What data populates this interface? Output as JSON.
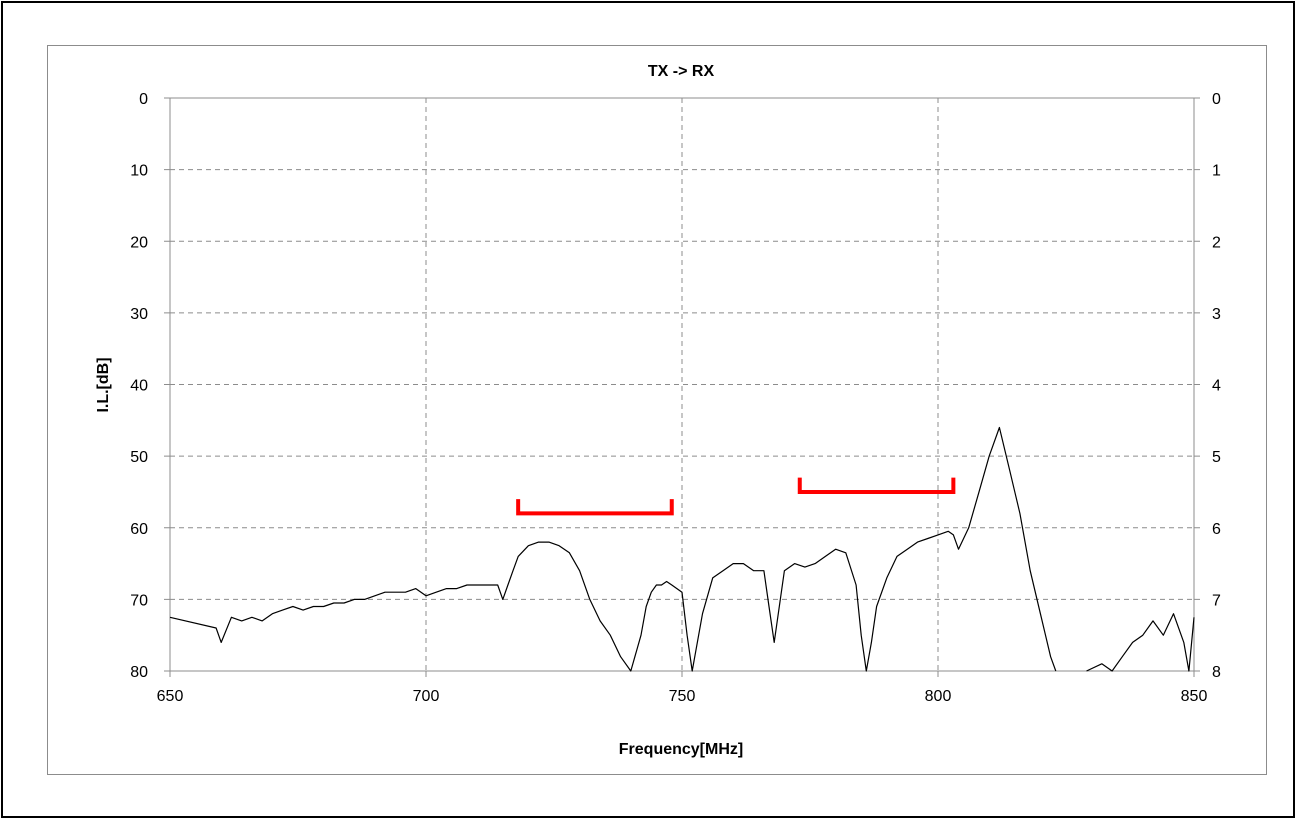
{
  "chart_data": {
    "type": "line",
    "title": "TX -> RX",
    "xlabel": "Frequency[MHz]",
    "ylabel": "I.L.[dB]",
    "xlim": [
      650,
      850
    ],
    "ylim_left": [
      0,
      80
    ],
    "ylim_right": [
      0,
      8
    ],
    "y_inverted": true,
    "grid": true,
    "x_ticks": [
      "650",
      "700",
      "750",
      "800",
      "850"
    ],
    "y_ticks_left": [
      "0",
      "10",
      "20",
      "30",
      "40",
      "50",
      "60",
      "70",
      "80"
    ],
    "y_ticks_right": [
      "0",
      "1",
      "2",
      "3",
      "4",
      "5",
      "6",
      "7",
      "8"
    ],
    "line_color": "#000000",
    "marker_color": "#ff0000",
    "series": [
      {
        "x": [
          650,
          659,
          660,
          662,
          664,
          666,
          668,
          670,
          672,
          674,
          676,
          678,
          680,
          682,
          684,
          686,
          688,
          690,
          692,
          694,
          696,
          698,
          700,
          702,
          704,
          706,
          708,
          710,
          712,
          714,
          715,
          716,
          717,
          718,
          720,
          722,
          724,
          726,
          728,
          730,
          732,
          734,
          736,
          738,
          740,
          742,
          743,
          744,
          745,
          746,
          747,
          748,
          750,
          751,
          752,
          754,
          756,
          758,
          760,
          762,
          764,
          766,
          767,
          768,
          770,
          772,
          774,
          776,
          778,
          780,
          782,
          784,
          785,
          786,
          787,
          788,
          790,
          792,
          794,
          796,
          798,
          800,
          802,
          803,
          804,
          806,
          808,
          810,
          812,
          814,
          816,
          818,
          820,
          822,
          823
        ],
        "y": [
          72.5,
          74,
          76,
          72.5,
          73,
          72.5,
          73,
          72,
          71.5,
          71,
          71.5,
          71,
          71,
          70.5,
          70.5,
          70,
          70,
          69.5,
          69,
          69,
          69,
          68.5,
          69.5,
          69,
          68.5,
          68.5,
          68,
          68,
          68,
          68,
          70,
          68,
          66,
          64,
          62.5,
          62,
          62,
          62.5,
          63.5,
          66,
          70,
          73,
          75,
          78,
          80,
          75,
          71,
          69,
          68,
          68,
          67.5,
          68,
          69,
          75,
          80,
          72,
          67,
          66,
          65,
          65,
          66,
          66,
          71,
          76,
          66,
          65,
          65.5,
          65,
          64,
          63,
          63.5,
          68,
          75,
          80,
          76,
          71,
          67,
          64,
          63,
          62,
          61.5,
          61,
          60.5,
          61,
          63,
          60,
          55,
          50,
          46,
          52,
          58,
          66,
          72,
          78,
          80
        ],
        "segment_b": {
          "x": [
            829,
            832,
            834,
            836,
            838,
            840,
            842,
            844,
            846,
            848,
            849,
            850
          ],
          "y": [
            80,
            79,
            80,
            78,
            76,
            75,
            73,
            75,
            72,
            76,
            80,
            72.5
          ]
        }
      }
    ],
    "spec_markers": [
      {
        "x_start": 718,
        "x_end": 748,
        "y": 58,
        "tick_top": 56
      },
      {
        "x_start": 773,
        "x_end": 803,
        "y": 55,
        "tick_top": 53
      }
    ]
  }
}
